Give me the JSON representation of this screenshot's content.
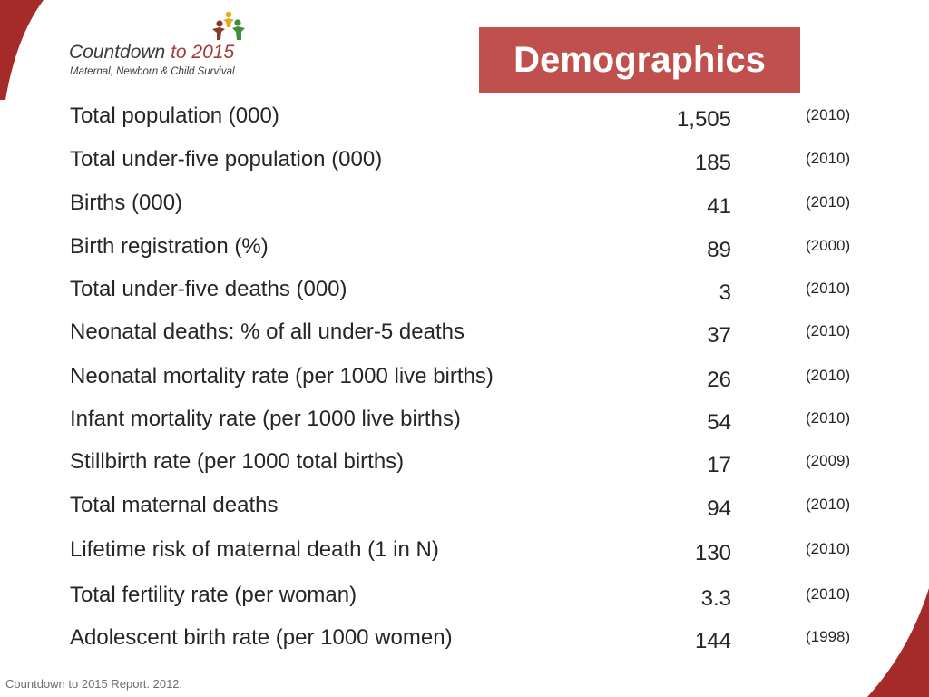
{
  "colors": {
    "accent": "#c0504d",
    "swoosh": "#a52a2a",
    "text": "#262626"
  },
  "logo": {
    "title_main": "Countdown ",
    "title_year": "to 2015",
    "subtitle": "Maternal, Newborn & Child Survival",
    "icon": "family-figures-icon"
  },
  "header": {
    "title": "Demographics"
  },
  "rows": [
    {
      "label": "Total population (000)",
      "value": "1,505",
      "year": "(2010)"
    },
    {
      "label": "Total under-five population (000)",
      "value": "185",
      "year": "(2010)"
    },
    {
      "label": "Births (000)",
      "value": "41",
      "year": "(2010)"
    },
    {
      "label": "Birth registration (%)",
      "value": "89",
      "year": "(2000)"
    },
    {
      "label": "Total under-five deaths (000)",
      "value": "3",
      "year": "(2010)"
    },
    {
      "label": "Neonatal deaths: % of all under-5 deaths",
      "value": "37",
      "year": "(2010)"
    },
    {
      "label": "Neonatal mortality rate (per 1000 live births)",
      "value": "26",
      "year": "(2010)"
    },
    {
      "label": "Infant mortality rate (per 1000 live births)",
      "value": "54",
      "year": "(2010)"
    },
    {
      "label": "Stillbirth rate (per 1000 total births)",
      "value": "17",
      "year": "(2009)"
    },
    {
      "label": "Total maternal deaths",
      "value": "94",
      "year": "(2010)"
    },
    {
      "label": "Lifetime risk of maternal death (1 in N)",
      "value": "130",
      "year": "(2010)"
    },
    {
      "label": "Total fertility rate (per woman)",
      "value": "3.3",
      "year": "(2010)"
    },
    {
      "label": "Adolescent birth rate (per 1000 women)",
      "value": "144",
      "year": "(1998)"
    }
  ],
  "footer": {
    "source": "Countdown to 2015 Report. 2012."
  }
}
